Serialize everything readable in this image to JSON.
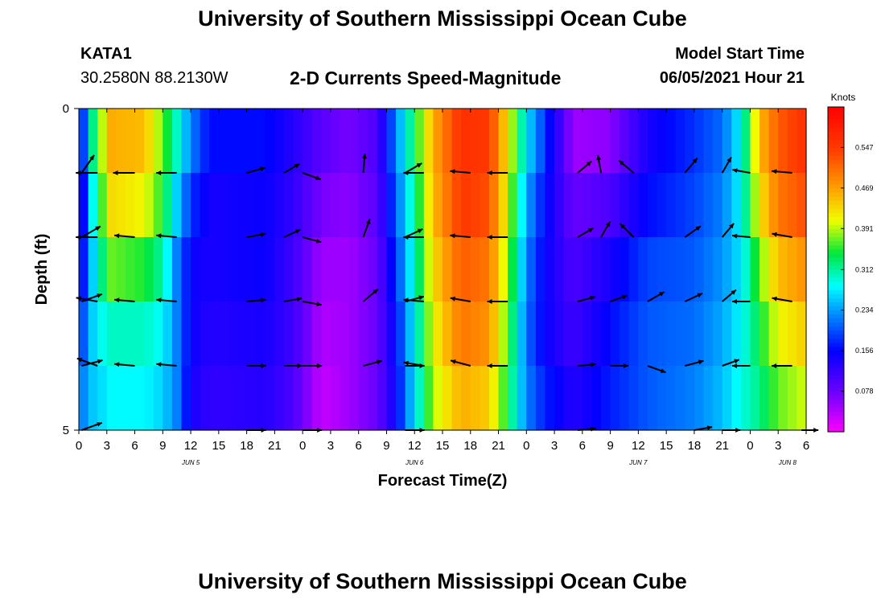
{
  "page_title": "University of Southern Mississippi Ocean Cube",
  "footer_title": "University of Southern Mississippi Ocean Cube",
  "header": {
    "station": "KATA1",
    "coordinates": "30.2580N  88.2130W",
    "subtitle": "2-D Currents Speed-Magnitude",
    "model_start_label": "Model Start Time",
    "model_start_value": "06/05/2021 Hour 21"
  },
  "chart_data": {
    "type": "heatmap",
    "title": "2-D Currents Speed-Magnitude",
    "xlabel": "Forecast Time(Z)",
    "ylabel": "Depth (ft)",
    "x_hours": [
      0,
      3,
      6,
      9,
      12,
      15,
      18,
      21,
      24,
      27,
      30,
      33,
      36,
      39,
      42,
      45,
      48,
      51,
      54,
      57,
      60,
      63,
      66,
      69,
      72,
      75,
      78
    ],
    "x_tick_labels": [
      "0",
      "3",
      "6",
      "9",
      "12",
      "15",
      "18",
      "21",
      "0",
      "3",
      "6",
      "9",
      "12",
      "15",
      "18",
      "21",
      "0",
      "3",
      "6",
      "9",
      "12",
      "15",
      "18",
      "21",
      "0",
      "3",
      "6"
    ],
    "date_labels": [
      {
        "hour": 12,
        "label": "JUN 5"
      },
      {
        "hour": 36,
        "label": "JUN 6"
      },
      {
        "hour": 60,
        "label": "JUN 7"
      },
      {
        "hour": 76,
        "label": "JUN 8"
      }
    ],
    "ylim": [
      0,
      5
    ],
    "y_tick_labels": [
      {
        "depth": 0,
        "label": "0"
      },
      {
        "depth": 5,
        "label": "5"
      }
    ],
    "colorbar": {
      "label": "Knots",
      "min": 0.0,
      "max": 0.625,
      "ticks": [
        0.078,
        0.156,
        0.234,
        0.312,
        0.391,
        0.469,
        0.547
      ]
    },
    "speed_keyframes": [
      {
        "h": 0,
        "v": [
          0.1,
          0.08,
          0.12,
          0.16,
          0.2
        ]
      },
      {
        "h": 1,
        "v": [
          0.28,
          0.24,
          0.22,
          0.24,
          0.25
        ]
      },
      {
        "h": 2,
        "v": [
          0.36,
          0.33,
          0.3,
          0.28,
          0.26
        ]
      },
      {
        "h": 3.5,
        "v": [
          0.46,
          0.43,
          0.37,
          0.3,
          0.28
        ]
      },
      {
        "h": 7,
        "v": [
          0.45,
          0.41,
          0.35,
          0.3,
          0.28
        ]
      },
      {
        "h": 9,
        "v": [
          0.37,
          0.35,
          0.31,
          0.28,
          0.26
        ]
      },
      {
        "h": 10.5,
        "v": [
          0.3,
          0.26,
          0.22,
          0.22,
          0.22
        ]
      },
      {
        "h": 12,
        "v": [
          0.22,
          0.18,
          0.15,
          0.15,
          0.14
        ]
      },
      {
        "h": 14,
        "v": [
          0.16,
          0.14,
          0.14,
          0.13,
          0.12
        ]
      },
      {
        "h": 20,
        "v": [
          0.16,
          0.15,
          0.15,
          0.14,
          0.13
        ]
      },
      {
        "h": 23,
        "v": [
          0.13,
          0.12,
          0.11,
          0.11,
          0.1
        ]
      },
      {
        "h": 26,
        "v": [
          0.09,
          0.07,
          0.05,
          0.04,
          0.03
        ]
      },
      {
        "h": 29,
        "v": [
          0.07,
          0.06,
          0.05,
          0.05,
          0.05
        ]
      },
      {
        "h": 32,
        "v": [
          0.1,
          0.09,
          0.08,
          0.08,
          0.08
        ]
      },
      {
        "h": 34,
        "v": [
          0.22,
          0.2,
          0.18,
          0.16,
          0.15
        ]
      },
      {
        "h": 36,
        "v": [
          0.34,
          0.32,
          0.3,
          0.28,
          0.27
        ]
      },
      {
        "h": 38,
        "v": [
          0.46,
          0.45,
          0.43,
          0.41,
          0.39
        ]
      },
      {
        "h": 41,
        "v": [
          0.56,
          0.55,
          0.52,
          0.5,
          0.46
        ]
      },
      {
        "h": 44,
        "v": [
          0.55,
          0.53,
          0.5,
          0.48,
          0.44
        ]
      },
      {
        "h": 46,
        "v": [
          0.42,
          0.4,
          0.38,
          0.36,
          0.34
        ]
      },
      {
        "h": 48,
        "v": [
          0.27,
          0.24,
          0.22,
          0.21,
          0.22
        ]
      },
      {
        "h": 50,
        "v": [
          0.18,
          0.16,
          0.15,
          0.15,
          0.17
        ]
      },
      {
        "h": 53,
        "v": [
          0.05,
          0.08,
          0.1,
          0.11,
          0.13
        ]
      },
      {
        "h": 57,
        "v": [
          0.06,
          0.1,
          0.14,
          0.16,
          0.17
        ]
      },
      {
        "h": 61,
        "v": [
          0.14,
          0.16,
          0.19,
          0.2,
          0.2
        ]
      },
      {
        "h": 66,
        "v": [
          0.18,
          0.19,
          0.2,
          0.21,
          0.22
        ]
      },
      {
        "h": 69,
        "v": [
          0.21,
          0.22,
          0.23,
          0.24,
          0.25
        ]
      },
      {
        "h": 71,
        "v": [
          0.28,
          0.28,
          0.27,
          0.28,
          0.29
        ]
      },
      {
        "h": 73,
        "v": [
          0.45,
          0.42,
          0.37,
          0.34,
          0.32
        ]
      },
      {
        "h": 75,
        "v": [
          0.52,
          0.5,
          0.45,
          0.41,
          0.37
        ]
      },
      {
        "h": 78,
        "v": [
          0.56,
          0.53,
          0.48,
          0.44,
          0.4
        ]
      }
    ],
    "vectors": [
      {
        "h": 0.3,
        "d": 1,
        "dir": 35,
        "len": 0.9
      },
      {
        "h": 2,
        "d": 1,
        "dir": 270,
        "len": 0.9
      },
      {
        "h": 6,
        "d": 1,
        "dir": 270,
        "len": 0.9
      },
      {
        "h": 10.5,
        "d": 1,
        "dir": 270,
        "len": 0.85
      },
      {
        "h": 18,
        "d": 1,
        "dir": 75,
        "len": 0.8
      },
      {
        "h": 22,
        "d": 1,
        "dir": 60,
        "len": 0.75
      },
      {
        "h": 24,
        "d": 1,
        "dir": 110,
        "len": 0.8
      },
      {
        "h": 30.5,
        "d": 1,
        "dir": 5,
        "len": 0.8
      },
      {
        "h": 35,
        "d": 1,
        "dir": 60,
        "len": 0.8
      },
      {
        "h": 37,
        "d": 1,
        "dir": 270,
        "len": 0.85
      },
      {
        "h": 42,
        "d": 1,
        "dir": 275,
        "len": 0.85
      },
      {
        "h": 46,
        "d": 1,
        "dir": 270,
        "len": 0.85
      },
      {
        "h": 53.5,
        "d": 1,
        "dir": 50,
        "len": 0.75
      },
      {
        "h": 56,
        "d": 1,
        "dir": 350,
        "len": 0.75
      },
      {
        "h": 59.5,
        "d": 1,
        "dir": 310,
        "len": 0.8
      },
      {
        "h": 65,
        "d": 1,
        "dir": 40,
        "len": 0.8
      },
      {
        "h": 69,
        "d": 1,
        "dir": 30,
        "len": 0.75
      },
      {
        "h": 72,
        "d": 1,
        "dir": 280,
        "len": 0.75
      },
      {
        "h": 76.5,
        "d": 1,
        "dir": 275,
        "len": 0.85
      },
      {
        "h": 0.3,
        "d": 2,
        "dir": 60,
        "len": 0.9
      },
      {
        "h": 2,
        "d": 2,
        "dir": 270,
        "len": 0.9
      },
      {
        "h": 6,
        "d": 2,
        "dir": 275,
        "len": 0.85
      },
      {
        "h": 10.5,
        "d": 2,
        "dir": 275,
        "len": 0.85
      },
      {
        "h": 18,
        "d": 2,
        "dir": 80,
        "len": 0.8
      },
      {
        "h": 22,
        "d": 2,
        "dir": 65,
        "len": 0.75
      },
      {
        "h": 24,
        "d": 2,
        "dir": 105,
        "len": 0.8
      },
      {
        "h": 30.5,
        "d": 2,
        "dir": 20,
        "len": 0.8
      },
      {
        "h": 35,
        "d": 2,
        "dir": 65,
        "len": 0.8
      },
      {
        "h": 37,
        "d": 2,
        "dir": 270,
        "len": 0.85
      },
      {
        "h": 42,
        "d": 2,
        "dir": 275,
        "len": 0.85
      },
      {
        "h": 46,
        "d": 2,
        "dir": 270,
        "len": 0.85
      },
      {
        "h": 53.5,
        "d": 2,
        "dir": 60,
        "len": 0.75
      },
      {
        "h": 56,
        "d": 2,
        "dir": 30,
        "len": 0.75
      },
      {
        "h": 59.5,
        "d": 2,
        "dir": 315,
        "len": 0.8
      },
      {
        "h": 65,
        "d": 2,
        "dir": 55,
        "len": 0.8
      },
      {
        "h": 69,
        "d": 2,
        "dir": 40,
        "len": 0.75
      },
      {
        "h": 72,
        "d": 2,
        "dir": 275,
        "len": 0.75
      },
      {
        "h": 76.5,
        "d": 2,
        "dir": 280,
        "len": 0.85
      },
      {
        "h": 0.3,
        "d": 3,
        "dir": 70,
        "len": 0.9
      },
      {
        "h": 2,
        "d": 3,
        "dir": 280,
        "len": 0.9
      },
      {
        "h": 6,
        "d": 3,
        "dir": 275,
        "len": 0.85
      },
      {
        "h": 10.5,
        "d": 3,
        "dir": 275,
        "len": 0.85
      },
      {
        "h": 18,
        "d": 3,
        "dir": 85,
        "len": 0.8
      },
      {
        "h": 22,
        "d": 3,
        "dir": 80,
        "len": 0.75
      },
      {
        "h": 24,
        "d": 3,
        "dir": 100,
        "len": 0.8
      },
      {
        "h": 30.5,
        "d": 3,
        "dir": 50,
        "len": 0.8
      },
      {
        "h": 35,
        "d": 3,
        "dir": 75,
        "len": 0.8
      },
      {
        "h": 37,
        "d": 3,
        "dir": 275,
        "len": 0.85
      },
      {
        "h": 42,
        "d": 3,
        "dir": 280,
        "len": 0.85
      },
      {
        "h": 46,
        "d": 3,
        "dir": 270,
        "len": 0.85
      },
      {
        "h": 53.5,
        "d": 3,
        "dir": 75,
        "len": 0.75
      },
      {
        "h": 57,
        "d": 3,
        "dir": 70,
        "len": 0.75
      },
      {
        "h": 61,
        "d": 3,
        "dir": 60,
        "len": 0.8
      },
      {
        "h": 65,
        "d": 3,
        "dir": 65,
        "len": 0.8
      },
      {
        "h": 69,
        "d": 3,
        "dir": 50,
        "len": 0.75
      },
      {
        "h": 72,
        "d": 3,
        "dir": 270,
        "len": 0.75
      },
      {
        "h": 76.5,
        "d": 3,
        "dir": 280,
        "len": 0.85
      },
      {
        "h": 0.3,
        "d": 4,
        "dir": 75,
        "len": 0.9
      },
      {
        "h": 2,
        "d": 4,
        "dir": 290,
        "len": 0.9
      },
      {
        "h": 6,
        "d": 4,
        "dir": 275,
        "len": 0.85
      },
      {
        "h": 10.5,
        "d": 4,
        "dir": 275,
        "len": 0.85
      },
      {
        "h": 18,
        "d": 4,
        "dir": 90,
        "len": 0.8
      },
      {
        "h": 22,
        "d": 4,
        "dir": 90,
        "len": 0.75
      },
      {
        "h": 24,
        "d": 4,
        "dir": 90,
        "len": 0.8
      },
      {
        "h": 30.5,
        "d": 4,
        "dir": 75,
        "len": 0.8
      },
      {
        "h": 35,
        "d": 4,
        "dir": 90,
        "len": 0.8
      },
      {
        "h": 37,
        "d": 4,
        "dir": 280,
        "len": 0.85
      },
      {
        "h": 42,
        "d": 4,
        "dir": 285,
        "len": 0.85
      },
      {
        "h": 46,
        "d": 4,
        "dir": 270,
        "len": 0.85
      },
      {
        "h": 53.5,
        "d": 4,
        "dir": 85,
        "len": 0.75
      },
      {
        "h": 57,
        "d": 4,
        "dir": 90,
        "len": 0.75
      },
      {
        "h": 61,
        "d": 4,
        "dir": 110,
        "len": 0.8
      },
      {
        "h": 65,
        "d": 4,
        "dir": 75,
        "len": 0.8
      },
      {
        "h": 69,
        "d": 4,
        "dir": 70,
        "len": 0.75
      },
      {
        "h": 72,
        "d": 4,
        "dir": 270,
        "len": 0.75
      },
      {
        "h": 76.5,
        "d": 4,
        "dir": 270,
        "len": 0.85
      },
      {
        "h": 0.3,
        "d": 5,
        "dir": 70,
        "len": 0.9
      },
      {
        "h": 18,
        "d": 5,
        "dir": 90,
        "len": 0.8
      },
      {
        "h": 24,
        "d": 5,
        "dir": 90,
        "len": 0.8
      },
      {
        "h": 35,
        "d": 5,
        "dir": 90,
        "len": 0.8
      },
      {
        "h": 53.5,
        "d": 5,
        "dir": 85,
        "len": 0.75
      },
      {
        "h": 66,
        "d": 5,
        "dir": 80,
        "len": 0.75
      },
      {
        "h": 69,
        "d": 5,
        "dir": 90,
        "len": 0.75
      },
      {
        "h": 77.5,
        "d": 5,
        "dir": 90,
        "len": 0.7
      }
    ]
  }
}
